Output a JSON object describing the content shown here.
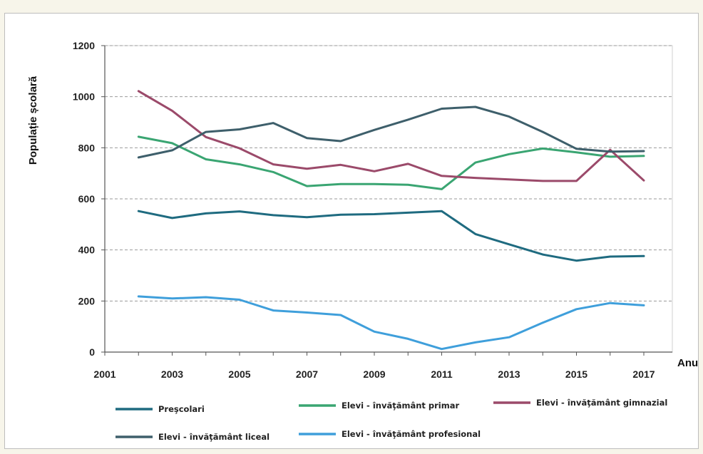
{
  "chart_data": {
    "type": "line",
    "title": "",
    "xlabel": "Anul",
    "ylabel": "Populație școlară",
    "xlim": [
      2001,
      2017
    ],
    "ylim": [
      0,
      1200
    ],
    "x_ticks": [
      "2001",
      "2003",
      "2005",
      "2007",
      "2009",
      "2011",
      "2013",
      "2015",
      "2017"
    ],
    "y_ticks": [
      "0",
      "200",
      "400",
      "600",
      "800",
      "1000",
      "1200"
    ],
    "grid": "horizontal dashed",
    "legend_position": "bottom",
    "x": [
      2002,
      2003,
      2004,
      2005,
      2006,
      2007,
      2008,
      2009,
      2010,
      2011,
      2012,
      2013,
      2014,
      2015,
      2016,
      2017
    ],
    "series": [
      {
        "name": "Preşcolari",
        "color": "#1f6b80",
        "values": [
          552,
          525,
          543,
          551,
          536,
          528,
          538,
          540,
          546,
          552,
          462,
          422,
          382,
          358,
          374,
          376
        ]
      },
      {
        "name": "Elevi - învăţământ primar",
        "color": "#3aa572",
        "values": [
          843,
          818,
          755,
          735,
          705,
          650,
          658,
          658,
          655,
          638,
          742,
          775,
          797,
          782,
          765,
          768
        ]
      },
      {
        "name": "Elevi - învăţământ gimnazial",
        "color": "#9b4a6a",
        "values": [
          1022,
          945,
          842,
          798,
          735,
          718,
          733,
          708,
          737,
          690,
          682,
          676,
          670,
          670,
          792,
          672
        ]
      },
      {
        "name": "Elevi - învăţământ liceal",
        "color": "#3e5f6b",
        "values": [
          762,
          790,
          862,
          872,
          897,
          838,
          826,
          870,
          910,
          953,
          960,
          922,
          862,
          796,
          785,
          787
        ]
      },
      {
        "name": "Elevi - învăţământ profesional",
        "color": "#3f9fdb",
        "values": [
          218,
          210,
          215,
          205,
          163,
          155,
          145,
          80,
          52,
          12,
          38,
          58,
          115,
          168,
          192,
          183
        ]
      }
    ]
  },
  "colors": {
    "grid": "#9a9a9a",
    "axis": "#555555",
    "plot_border": "#d0d0d0"
  }
}
